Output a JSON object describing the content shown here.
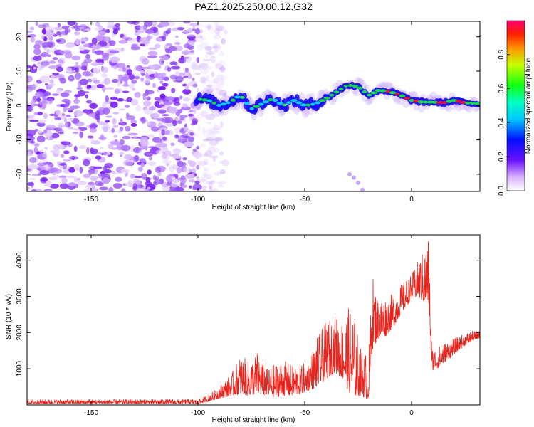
{
  "title": "PAZ1.2025.250.00.12.G32",
  "colors": {
    "snr_line": "#e8241c",
    "axis": "#000000",
    "spectral_bg_purple": "#8a3df5",
    "track_low": "#1e10f0",
    "track_mid": "#00d8ff",
    "track_green": "#12e83a",
    "track_high": "#f01030"
  },
  "chart_data": [
    {
      "type": "heatmap",
      "name": "spectrogram",
      "xlabel": "Height of straight line (km)",
      "ylabel": "Frequency (Hz)",
      "xlim": [
        -180,
        32
      ],
      "ylim": [
        -25,
        24.5
      ],
      "xticks": [
        -150,
        -100,
        -50,
        0
      ],
      "yticks": [
        -20,
        -10,
        0,
        10,
        20
      ],
      "noise_region_x": [
        -180,
        -93
      ],
      "main_track": [
        {
          "x": -101,
          "y": 2
        },
        {
          "x": -95,
          "y": 1.5
        },
        {
          "x": -90,
          "y": 0
        },
        {
          "x": -85,
          "y": 1
        },
        {
          "x": -80,
          "y": 3
        },
        {
          "x": -75,
          "y": -1
        },
        {
          "x": -70,
          "y": 0.5
        },
        {
          "x": -65,
          "y": 2
        },
        {
          "x": -60,
          "y": 0
        },
        {
          "x": -55,
          "y": 1.5
        },
        {
          "x": -50,
          "y": 0
        },
        {
          "x": -45,
          "y": 0.5
        },
        {
          "x": -40,
          "y": 2
        },
        {
          "x": -35,
          "y": 4
        },
        {
          "x": -30,
          "y": 6
        },
        {
          "x": -25,
          "y": 5.5
        },
        {
          "x": -20,
          "y": 3
        },
        {
          "x": -15,
          "y": 4.5
        },
        {
          "x": -10,
          "y": 4
        },
        {
          "x": -5,
          "y": 3
        },
        {
          "x": 0,
          "y": 1.5
        },
        {
          "x": 5,
          "y": 1
        },
        {
          "x": 10,
          "y": 1
        },
        {
          "x": 15,
          "y": 0.8
        },
        {
          "x": 20,
          "y": 1.5
        },
        {
          "x": 25,
          "y": 0.8
        },
        {
          "x": 32,
          "y": 0.5
        }
      ],
      "secondary_track": [
        {
          "x": -29,
          "y": -20
        },
        {
          "x": -27,
          "y": -21
        },
        {
          "x": -25,
          "y": -22.5
        },
        {
          "x": -23,
          "y": -24.5
        }
      ]
    },
    {
      "type": "colorbar",
      "label": "Normalized spectral amplitude",
      "range": [
        0,
        1
      ],
      "ticks": [
        "0.0",
        "0.2",
        "0.4",
        "0.6",
        "0.8"
      ],
      "tick_values": [
        0,
        0.2,
        0.4,
        0.6,
        0.8
      ]
    },
    {
      "type": "line",
      "name": "snr",
      "xlabel": "Height of straight line (km)",
      "ylabel": "SNR (10 * v/v)",
      "xlim": [
        -180,
        32
      ],
      "ylim": [
        0,
        4700
      ],
      "xticks": [
        -150,
        -100,
        -50,
        0
      ],
      "yticks": [
        1000,
        2000,
        3000,
        4000
      ],
      "envelope": [
        {
          "x": -180,
          "lo": 30,
          "hi": 150
        },
        {
          "x": -100,
          "lo": 30,
          "hi": 160
        },
        {
          "x": -96,
          "lo": 80,
          "hi": 250
        },
        {
          "x": -92,
          "lo": 150,
          "hi": 420
        },
        {
          "x": -88,
          "lo": 200,
          "hi": 650
        },
        {
          "x": -84,
          "lo": 250,
          "hi": 900
        },
        {
          "x": -80,
          "lo": 300,
          "hi": 1400
        },
        {
          "x": -76,
          "lo": 250,
          "hi": 1200
        },
        {
          "x": -72,
          "lo": 300,
          "hi": 1500
        },
        {
          "x": -68,
          "lo": 250,
          "hi": 1000
        },
        {
          "x": -64,
          "lo": 200,
          "hi": 1150
        },
        {
          "x": -60,
          "lo": 250,
          "hi": 1250
        },
        {
          "x": -56,
          "lo": 250,
          "hi": 1100
        },
        {
          "x": -52,
          "lo": 300,
          "hi": 1100
        },
        {
          "x": -48,
          "lo": 400,
          "hi": 1250
        },
        {
          "x": -44,
          "lo": 500,
          "hi": 1900
        },
        {
          "x": -40,
          "lo": 700,
          "hi": 2300
        },
        {
          "x": -36,
          "lo": 900,
          "hi": 2500
        },
        {
          "x": -32,
          "lo": 700,
          "hi": 2350
        },
        {
          "x": -28,
          "lo": 200,
          "hi": 2900
        },
        {
          "x": -24,
          "lo": 250,
          "hi": 1600
        },
        {
          "x": -20,
          "lo": 150,
          "hi": 1400
        },
        {
          "x": -18.5,
          "lo": 1500,
          "hi": 3700
        },
        {
          "x": -16,
          "lo": 1800,
          "hi": 3000
        },
        {
          "x": -12,
          "lo": 1900,
          "hi": 3000
        },
        {
          "x": -8,
          "lo": 2200,
          "hi": 3100
        },
        {
          "x": -4,
          "lo": 2600,
          "hi": 3400
        },
        {
          "x": 0,
          "lo": 2900,
          "hi": 3600
        },
        {
          "x": 3,
          "lo": 3000,
          "hi": 4000
        },
        {
          "x": 6,
          "lo": 2800,
          "hi": 4300
        },
        {
          "x": 8,
          "lo": 2800,
          "hi": 4700
        },
        {
          "x": 9.5,
          "lo": 950,
          "hi": 1600
        },
        {
          "x": 12,
          "lo": 1000,
          "hi": 1600
        },
        {
          "x": 16,
          "lo": 1200,
          "hi": 1750
        },
        {
          "x": 20,
          "lo": 1400,
          "hi": 1850
        },
        {
          "x": 24,
          "lo": 1600,
          "hi": 1950
        },
        {
          "x": 28,
          "lo": 1750,
          "hi": 2050
        },
        {
          "x": 32,
          "lo": 1850,
          "hi": 2050
        }
      ]
    }
  ]
}
